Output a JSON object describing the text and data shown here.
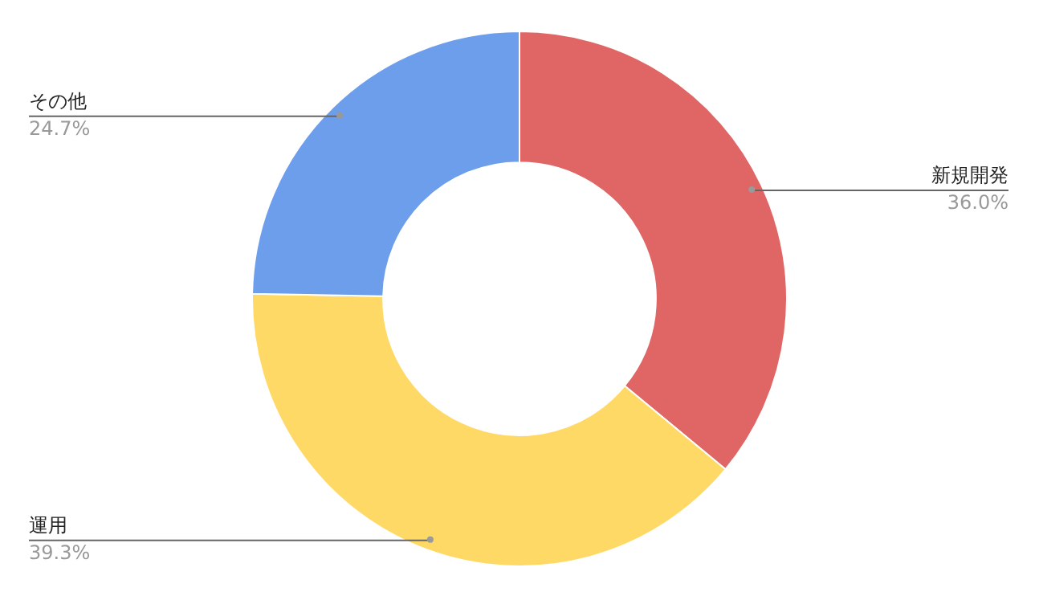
{
  "chart_data": {
    "type": "donut",
    "categories": [
      "新規開発",
      "運用",
      "その他"
    ],
    "values": [
      36.0,
      39.3,
      24.7
    ],
    "colors": [
      "#e06666",
      "#ffd966",
      "#6d9eeb"
    ],
    "value_labels": [
      "36.0%",
      "39.3%",
      "24.7%"
    ],
    "legend": false
  }
}
